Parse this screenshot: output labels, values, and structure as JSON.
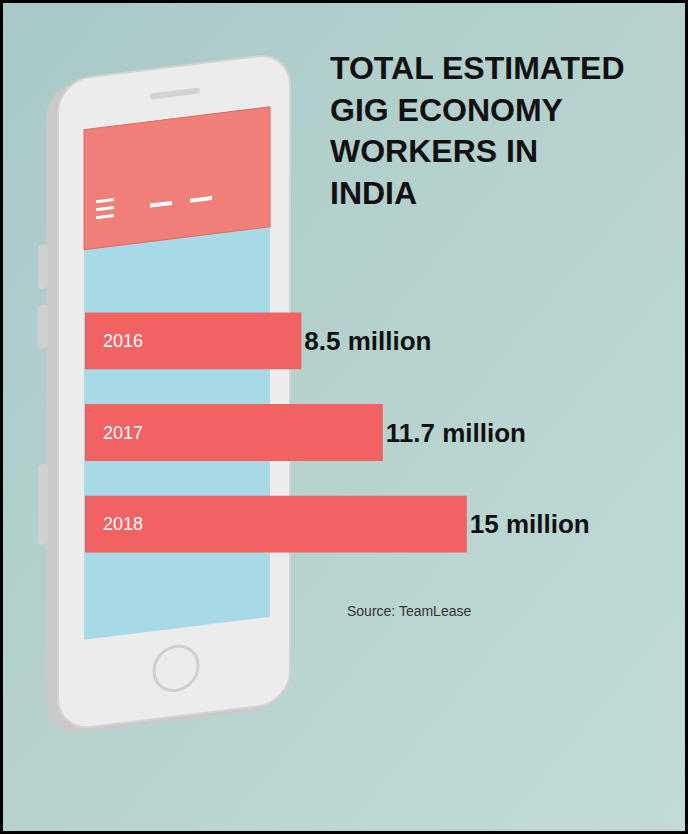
{
  "chart_data": {
    "type": "bar",
    "title": "TOTAL ESTIMATED GIG ECONOMY WORKERS IN INDIA",
    "categories": [
      "2016",
      "2017",
      "2018"
    ],
    "values": [
      8.5,
      11.7,
      15
    ],
    "value_labels": [
      "8.5 million",
      "11.7 million",
      "15 million"
    ],
    "color": "#f26262",
    "orientation": "horizontal",
    "data_labels": true,
    "tick_labels": false,
    "xlim": [
      0,
      22
    ],
    "source": "Source: TeamLease"
  }
}
